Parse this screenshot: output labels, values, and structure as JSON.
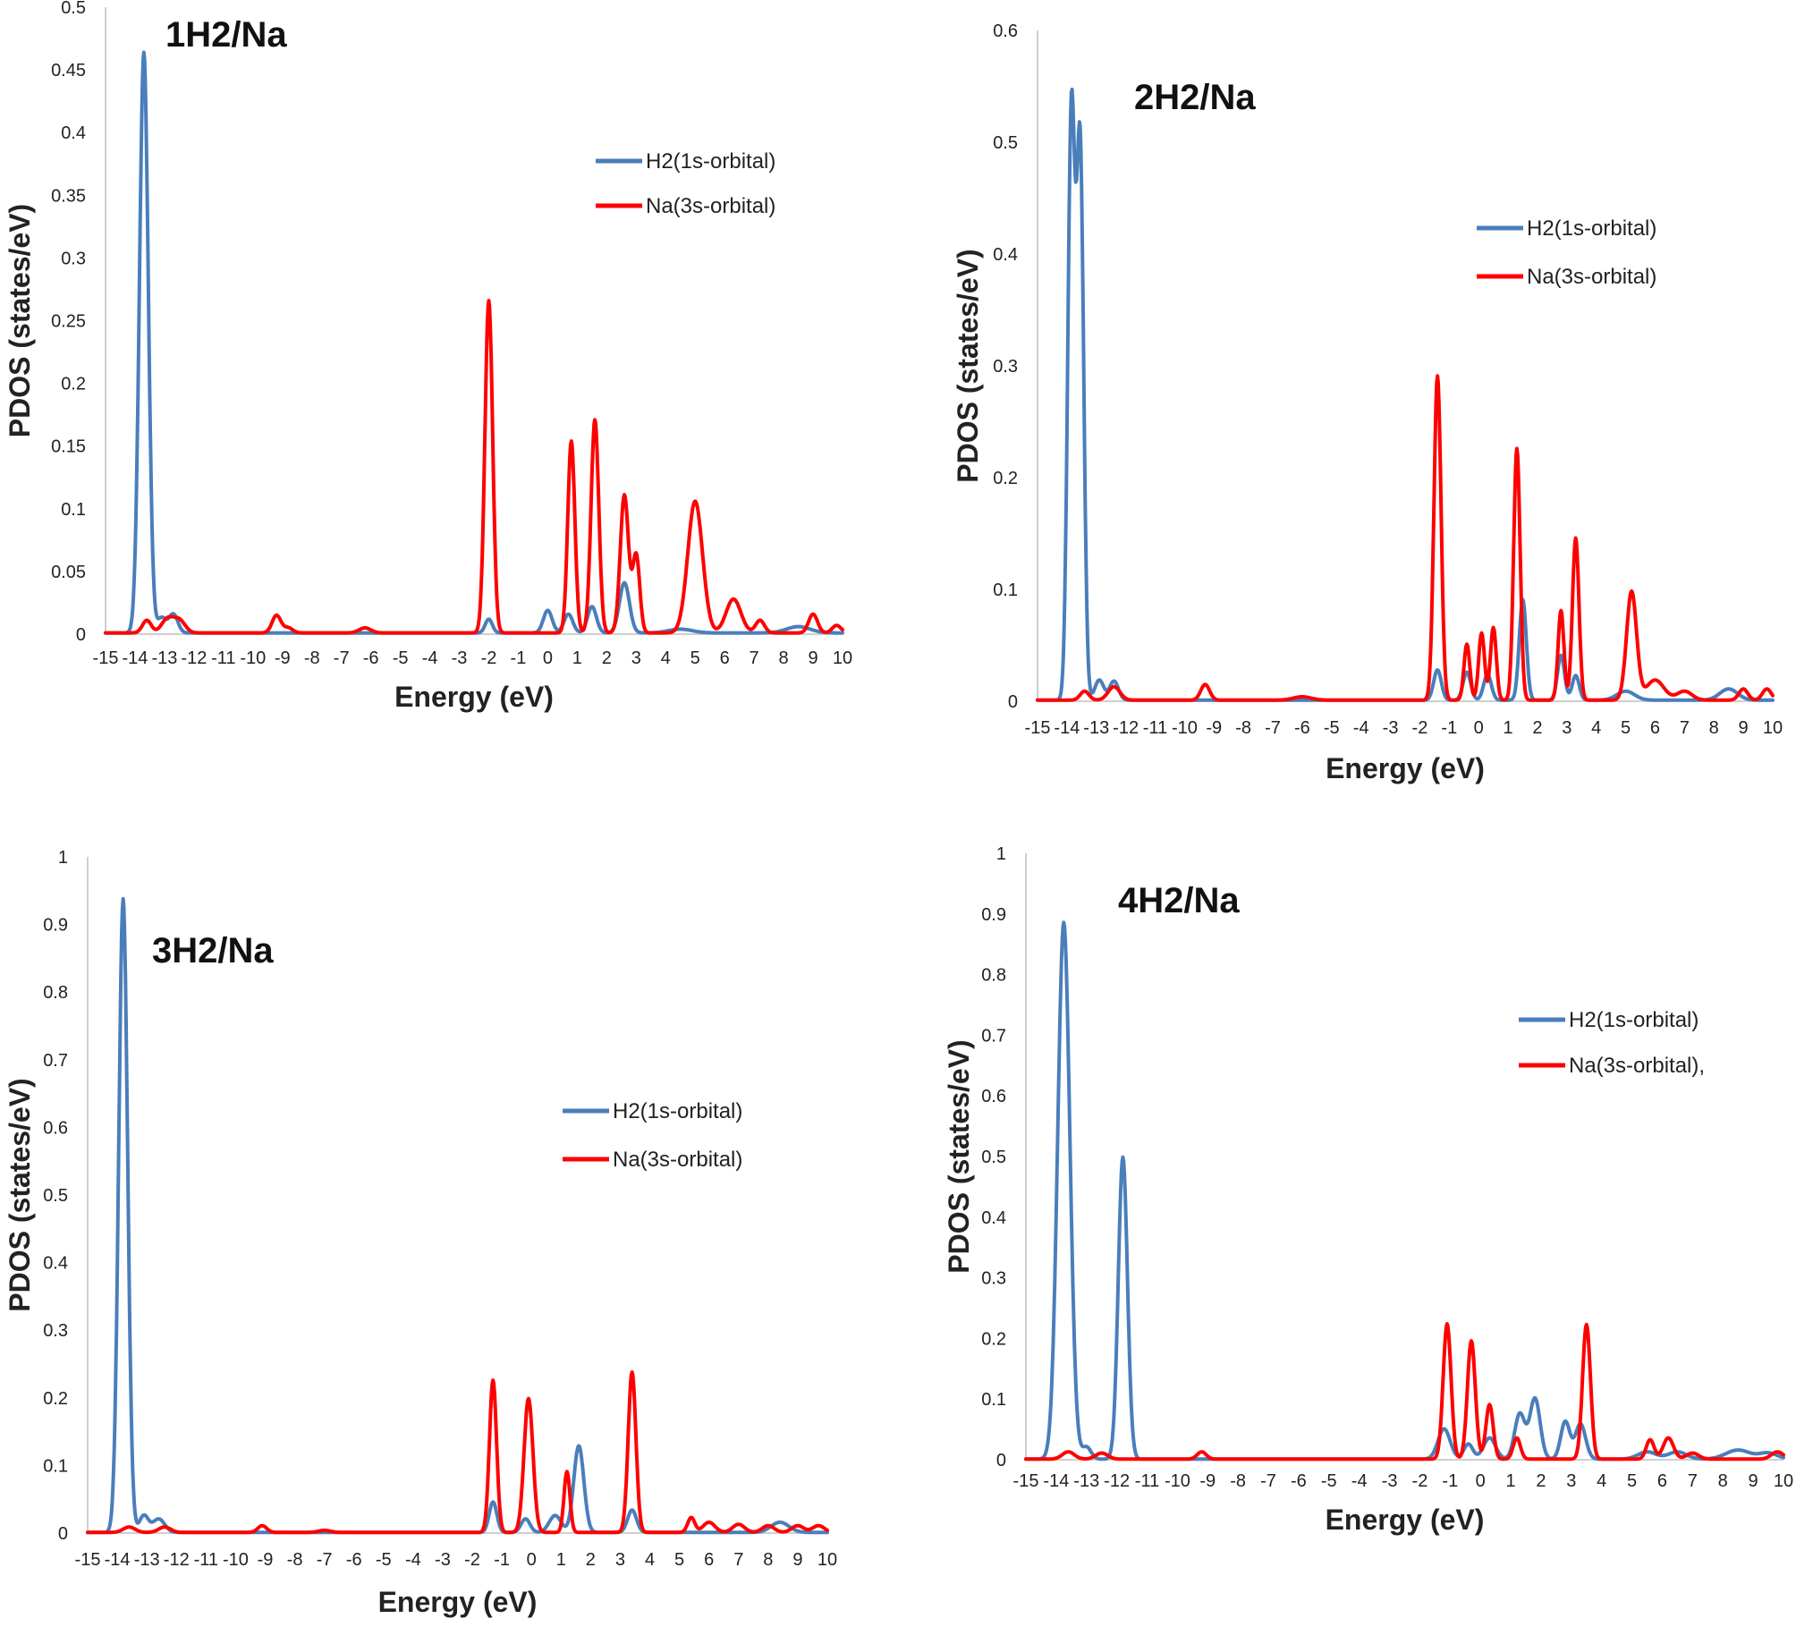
{
  "colors": {
    "h2": "#4a7ebb",
    "na": "#ff0000"
  },
  "chart_data": [
    {
      "type": "line",
      "title": "1H2/Na",
      "xlabel": "Energy (eV)",
      "ylabel": "PDOS (states/eV)",
      "xlim": [
        -15,
        10
      ],
      "ylim": [
        0,
        0.5
      ],
      "yticks": [
        "0",
        "0.05",
        "0.1",
        "0.15",
        "0.2",
        "0.25",
        "0.3",
        "0.35",
        "0.4",
        "0.45",
        "0.5"
      ],
      "xticks": [
        "-15",
        "-14",
        "-13",
        "-12",
        "-11",
        "-10",
        "-9",
        "-8",
        "-7",
        "-6",
        "-5",
        "-4",
        "-3",
        "-2",
        "-1",
        "0",
        "1",
        "2",
        "3",
        "4",
        "5",
        "6",
        "7",
        "8",
        "9",
        "10"
      ],
      "legend": [
        "H2(1s-orbital)",
        "Na(3s-orbital)"
      ],
      "series": [
        {
          "name": "H2(1s-orbital)",
          "color": "#4a7ebb",
          "peaks": [
            [
              -13.7,
              0.463,
              0.15
            ],
            [
              -13.1,
              0.012,
              0.15
            ],
            [
              -12.7,
              0.015,
              0.15
            ],
            [
              -2.0,
              0.011,
              0.12
            ],
            [
              0.0,
              0.018,
              0.15
            ],
            [
              0.7,
              0.015,
              0.15
            ],
            [
              1.5,
              0.021,
              0.15
            ],
            [
              2.6,
              0.04,
              0.17
            ],
            [
              4.5,
              0.003,
              0.4
            ],
            [
              8.5,
              0.005,
              0.4
            ]
          ]
        },
        {
          "name": "Na(3s-orbital)",
          "color": "#ff0000",
          "peaks": [
            [
              -13.6,
              0.01,
              0.15
            ],
            [
              -12.9,
              0.011,
              0.2
            ],
            [
              -12.5,
              0.01,
              0.2
            ],
            [
              -9.2,
              0.014,
              0.15
            ],
            [
              -8.8,
              0.004,
              0.15
            ],
            [
              -6.2,
              0.004,
              0.2
            ],
            [
              -2.0,
              0.265,
              0.13
            ],
            [
              0.8,
              0.153,
              0.12
            ],
            [
              1.6,
              0.17,
              0.13
            ],
            [
              2.6,
              0.11,
              0.14
            ],
            [
              3.0,
              0.062,
              0.12
            ],
            [
              5.0,
              0.105,
              0.25
            ],
            [
              6.3,
              0.027,
              0.25
            ],
            [
              7.2,
              0.01,
              0.15
            ],
            [
              9.0,
              0.015,
              0.15
            ],
            [
              9.8,
              0.006,
              0.15
            ]
          ]
        }
      ]
    },
    {
      "type": "line",
      "title": "2H2/Na",
      "xlabel": "Energy (eV)",
      "ylabel": "PDOS (states/eV)",
      "xlim": [
        -15,
        10
      ],
      "ylim": [
        0,
        0.6
      ],
      "yticks": [
        "0",
        "0.1",
        "0.2",
        "0.3",
        "0.4",
        "0.5",
        "0.6"
      ],
      "xticks": [
        "-15",
        "-14",
        "-13",
        "-12",
        "-11",
        "-10",
        "-9",
        "-8",
        "-7",
        "-6",
        "-5",
        "-4",
        "-3",
        "-2",
        "-1",
        "0",
        "1",
        "2",
        "3",
        "4",
        "5",
        "6",
        "7",
        "8",
        "9",
        "10"
      ],
      "legend": [
        "H2(1s-orbital)",
        "Na(3s-orbital)"
      ],
      "series": [
        {
          "name": "H2(1s-orbital)",
          "color": "#4a7ebb",
          "peaks": [
            [
              -13.85,
              0.522,
              0.12
            ],
            [
              -13.55,
              0.49,
              0.12
            ],
            [
              -12.9,
              0.018,
              0.15
            ],
            [
              -12.4,
              0.017,
              0.15
            ],
            [
              -1.4,
              0.027,
              0.13
            ],
            [
              -0.4,
              0.025,
              0.13
            ],
            [
              0.3,
              0.023,
              0.13
            ],
            [
              1.5,
              0.09,
              0.12
            ],
            [
              2.8,
              0.04,
              0.12
            ],
            [
              3.3,
              0.022,
              0.12
            ],
            [
              5.0,
              0.008,
              0.3
            ],
            [
              8.5,
              0.01,
              0.3
            ]
          ]
        },
        {
          "name": "Na(3s-orbital)",
          "color": "#ff0000",
          "peaks": [
            [
              -13.4,
              0.008,
              0.15
            ],
            [
              -12.4,
              0.012,
              0.2
            ],
            [
              -9.3,
              0.014,
              0.15
            ],
            [
              -6.0,
              0.003,
              0.3
            ],
            [
              -1.4,
              0.29,
              0.12
            ],
            [
              -0.4,
              0.05,
              0.1
            ],
            [
              0.1,
              0.06,
              0.1
            ],
            [
              0.5,
              0.065,
              0.1
            ],
            [
              1.3,
              0.225,
              0.11
            ],
            [
              2.8,
              0.08,
              0.1
            ],
            [
              3.3,
              0.145,
              0.11
            ],
            [
              5.2,
              0.097,
              0.17
            ],
            [
              6.0,
              0.018,
              0.3
            ],
            [
              7.0,
              0.008,
              0.25
            ],
            [
              9.0,
              0.01,
              0.15
            ],
            [
              9.8,
              0.01,
              0.15
            ]
          ]
        }
      ]
    },
    {
      "type": "line",
      "title": "3H2/Na",
      "xlabel": "Energy (eV)",
      "ylabel": "PDOS (states/eV)",
      "xlim": [
        -15,
        10
      ],
      "ylim": [
        0,
        1
      ],
      "yticks": [
        "0",
        "0.1",
        "0.2",
        "0.3",
        "0.4",
        "0.5",
        "0.6",
        "0.7",
        "0.8",
        "0.9",
        "1"
      ],
      "xticks": [
        "-15",
        "-14",
        "-13",
        "-12",
        "-11",
        "-10",
        "-9",
        "-8",
        "-7",
        "-6",
        "-5",
        "-4",
        "-3",
        "-2",
        "-1",
        "0",
        "1",
        "2",
        "3",
        "4",
        "5",
        "6",
        "7",
        "8",
        "9",
        "10"
      ],
      "legend": [
        "H2(1s-orbital)",
        "Na(3s-orbital)"
      ],
      "series": [
        {
          "name": "H2(1s-orbital)",
          "color": "#4a7ebb",
          "peaks": [
            [
              -13.8,
              0.937,
              0.15
            ],
            [
              -13.1,
              0.025,
              0.15
            ],
            [
              -12.6,
              0.02,
              0.2
            ],
            [
              -1.3,
              0.045,
              0.13
            ],
            [
              -0.2,
              0.02,
              0.15
            ],
            [
              0.8,
              0.025,
              0.2
            ],
            [
              1.6,
              0.128,
              0.17
            ],
            [
              3.4,
              0.033,
              0.15
            ],
            [
              8.4,
              0.015,
              0.3
            ]
          ]
        },
        {
          "name": "Na(3s-orbital)",
          "color": "#ff0000",
          "peaks": [
            [
              -13.6,
              0.008,
              0.2
            ],
            [
              -12.4,
              0.008,
              0.2
            ],
            [
              -9.1,
              0.01,
              0.15
            ],
            [
              -7.0,
              0.003,
              0.2
            ],
            [
              -1.3,
              0.225,
              0.12
            ],
            [
              -0.1,
              0.198,
              0.15
            ],
            [
              1.2,
              0.09,
              0.1
            ],
            [
              3.4,
              0.237,
              0.13
            ],
            [
              5.4,
              0.022,
              0.12
            ],
            [
              6.0,
              0.015,
              0.2
            ],
            [
              7.0,
              0.012,
              0.2
            ],
            [
              8.0,
              0.01,
              0.2
            ],
            [
              9.0,
              0.01,
              0.2
            ],
            [
              9.7,
              0.01,
              0.2
            ]
          ]
        }
      ]
    },
    {
      "type": "line",
      "title": "4H2/Na",
      "xlabel": "Energy (eV)",
      "ylabel": "PDOS (states/eV)",
      "xlim": [
        -15,
        10
      ],
      "ylim": [
        0,
        1
      ],
      "yticks": [
        "0",
        "0.1",
        "0.2",
        "0.3",
        "0.4",
        "0.5",
        "0.6",
        "0.7",
        "0.8",
        "0.9",
        "1"
      ],
      "xticks": [
        "-15",
        "-14",
        "-13",
        "-12",
        "-11",
        "-10",
        "-9",
        "-8",
        "-7",
        "-6",
        "-5",
        "-4",
        "-3",
        "-2",
        "-1",
        "0",
        "1",
        "2",
        "3",
        "4",
        "5",
        "6",
        "7",
        "8",
        "9",
        "10"
      ],
      "legend": [
        "H2(1s-orbital)",
        "Na(3s-orbital),"
      ],
      "series": [
        {
          "name": "H2(1s-orbital)",
          "color": "#4a7ebb",
          "peaks": [
            [
              -13.75,
              0.885,
              0.2
            ],
            [
              -13.0,
              0.02,
              0.15
            ],
            [
              -11.8,
              0.498,
              0.15
            ],
            [
              -1.2,
              0.05,
              0.2
            ],
            [
              -0.4,
              0.025,
              0.15
            ],
            [
              0.3,
              0.035,
              0.2
            ],
            [
              1.3,
              0.075,
              0.17
            ],
            [
              1.8,
              0.1,
              0.17
            ],
            [
              2.8,
              0.062,
              0.15
            ],
            [
              3.3,
              0.058,
              0.17
            ],
            [
              5.5,
              0.012,
              0.3
            ],
            [
              6.5,
              0.012,
              0.3
            ],
            [
              8.5,
              0.015,
              0.4
            ],
            [
              9.5,
              0.01,
              0.3
            ]
          ]
        },
        {
          "name": "Na(3s-orbital),",
          "color": "#ff0000",
          "peaks": [
            [
              -13.6,
              0.012,
              0.2
            ],
            [
              -12.5,
              0.01,
              0.2
            ],
            [
              -9.2,
              0.012,
              0.15
            ],
            [
              -1.1,
              0.223,
              0.13
            ],
            [
              -0.3,
              0.195,
              0.13
            ],
            [
              0.3,
              0.09,
              0.12
            ],
            [
              1.2,
              0.035,
              0.12
            ],
            [
              3.5,
              0.222,
              0.13
            ],
            [
              5.6,
              0.032,
              0.13
            ],
            [
              6.2,
              0.035,
              0.17
            ],
            [
              7.0,
              0.01,
              0.2
            ],
            [
              9.8,
              0.012,
              0.2
            ]
          ]
        }
      ]
    }
  ]
}
